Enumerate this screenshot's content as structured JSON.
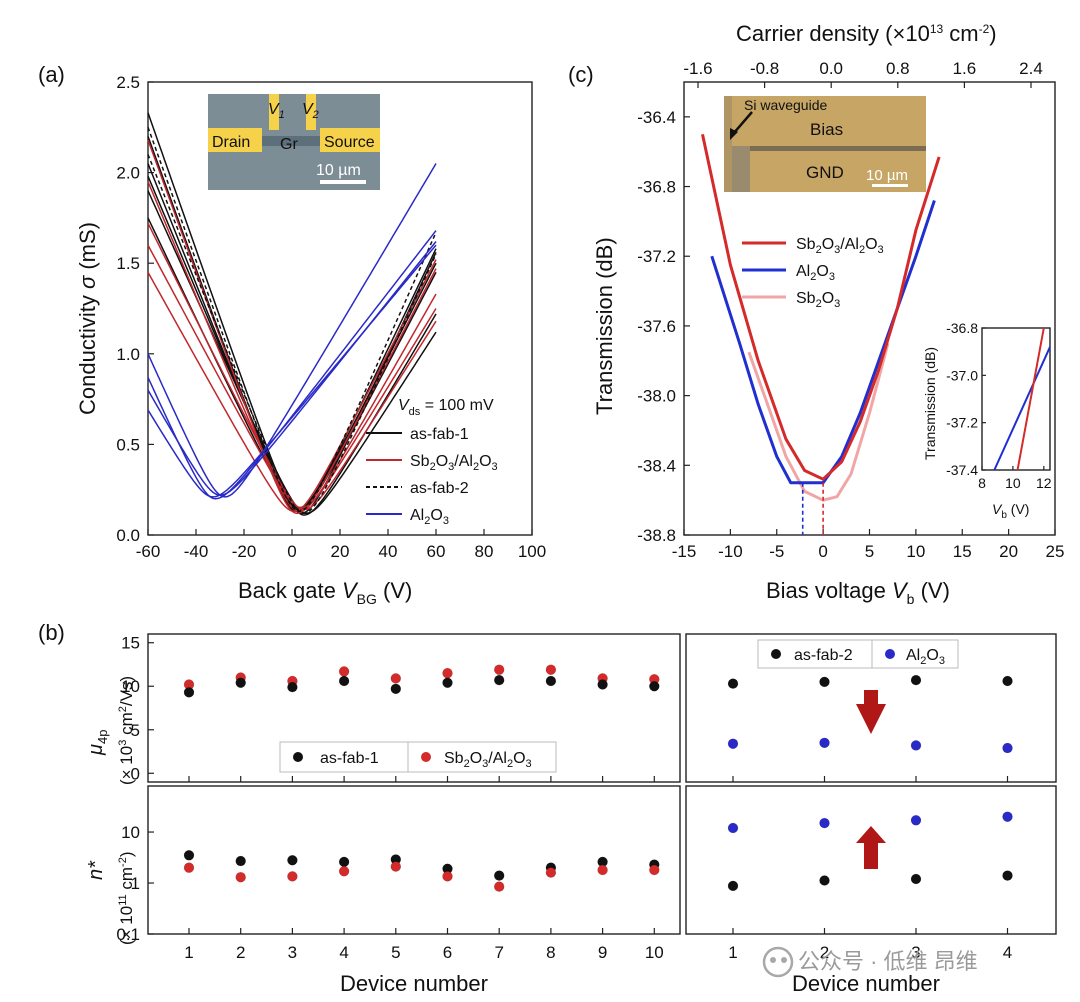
{
  "chart_data": [
    {
      "panel": "(a)",
      "type": "line",
      "xlabel": "Back gate V_BG (V)",
      "ylabel": "Conductivity σ (mS)",
      "xlim": [
        -60,
        100
      ],
      "ylim": [
        0,
        2.5
      ],
      "xticks": [
        "-60",
        "-40",
        "-20",
        "0",
        "20",
        "40",
        "60",
        "80",
        "100"
      ],
      "yticks": [
        "0.0",
        "0.5",
        "1.0",
        "1.5",
        "2.0",
        "2.5"
      ],
      "inset": {
        "labels": [
          "V1",
          "V2",
          "Drain",
          "Gr",
          "Source"
        ],
        "scale": "10 µm"
      },
      "legend_title": "V_ds = 100 mV",
      "legend": [
        "as-fab-1",
        "Sb2O3/Al2O3",
        "as-fab-2",
        "Al2O3"
      ],
      "colors": {
        "as_fab_1": "#111111",
        "sb2o3_al2o3": "#c0282d",
        "as_fab_2": "#111111",
        "al2o3": "#2a2ac8"
      },
      "series": [
        {
          "group": "as-fab-1",
          "style": "solid",
          "curves": [
            {
              "vd": 4,
              "left": 2.33,
              "right": 1.56,
              "min": 0.12
            },
            {
              "vd": 3,
              "left": 2.05,
              "right": 1.45,
              "min": 0.14
            },
            {
              "vd": 5,
              "left": 1.98,
              "right": 1.22,
              "min": 0.11
            },
            {
              "vd": 2,
              "left": 2.2,
              "right": 1.5,
              "min": 0.13
            },
            {
              "vd": 6,
              "left": 1.9,
              "right": 1.12,
              "min": 0.12
            },
            {
              "vd": 3,
              "left": 1.75,
              "right": 1.58,
              "min": 0.15
            }
          ]
        },
        {
          "group": "Sb2O3/Al2O3",
          "style": "solid",
          "curves": [
            {
              "vd": 2,
              "left": 2.18,
              "right": 1.47,
              "min": 0.12
            },
            {
              "vd": 3,
              "left": 1.95,
              "right": 1.33,
              "min": 0.13
            },
            {
              "vd": 4,
              "left": 1.6,
              "right": 1.25,
              "min": 0.15
            },
            {
              "vd": 1,
              "left": 1.45,
              "right": 1.52,
              "min": 0.13
            },
            {
              "vd": 5,
              "left": 1.72,
              "right": 1.18,
              "min": 0.14
            }
          ]
        },
        {
          "group": "as-fab-2",
          "style": "dashed",
          "curves": [
            {
              "vd": 3,
              "left": 2.25,
              "right": 1.67,
              "min": 0.13
            },
            {
              "vd": 5,
              "left": 2.1,
              "right": 1.55,
              "min": 0.12
            }
          ]
        },
        {
          "group": "Al2O3",
          "style": "solid",
          "curves": [
            {
              "vd": -28,
              "left": 1.0,
              "right": 2.05,
              "min": 0.21
            },
            {
              "vd": -32,
              "left": 0.87,
              "right": 1.68,
              "min": 0.2
            },
            {
              "vd": -30,
              "left": 0.8,
              "right": 1.62,
              "min": 0.22
            },
            {
              "vd": -33,
              "left": 0.69,
              "right": 1.6,
              "min": 0.21
            }
          ]
        }
      ]
    },
    {
      "panel": "(c)",
      "type": "line",
      "xlabel": "Bias voltage V_b (V)",
      "ylabel": "Transmission (dB)",
      "top_xlabel": "Carrier density (×10^13 cm^-2)",
      "xlim": [
        -15,
        25
      ],
      "ylim": [
        -38.8,
        -36.2
      ],
      "xticks": [
        "-15",
        "-10",
        "-5",
        "0",
        "5",
        "10",
        "15",
        "20",
        "25"
      ],
      "yticks": [
        "-36.4",
        "-36.8",
        "-37.2",
        "-37.6",
        "-38.0",
        "-38.4",
        "-38.8"
      ],
      "top_ticks": [
        "-1.6",
        "-0.8",
        "0.0",
        "0.8",
        "1.6",
        "2.4"
      ],
      "inset": {
        "labels": [
          "Si waveguide",
          "Bias",
          "GND"
        ],
        "scale": "10 µm"
      },
      "legend": [
        "Sb2O3/Al2O3",
        "Al2O3",
        "Sb2O3"
      ],
      "colors": {
        "sb2o3_al2o3": "#d42a2a",
        "al2o3": "#1f2fd0",
        "sb2o3": "#f2a5a5"
      },
      "series": [
        {
          "name": "Sb2O3/Al2O3",
          "x": [
            -13,
            -10,
            -7,
            -4,
            -2,
            0,
            2,
            4,
            6,
            8,
            10,
            12.5
          ],
          "y": [
            -36.5,
            -37.25,
            -37.8,
            -38.25,
            -38.43,
            -38.48,
            -38.38,
            -38.15,
            -37.85,
            -37.5,
            -37.05,
            -36.63
          ]
        },
        {
          "name": "Al2O3",
          "x": [
            -12,
            -9,
            -7,
            -5,
            -3.5,
            -2,
            0,
            2,
            4,
            6,
            8,
            10,
            12
          ],
          "y": [
            -37.2,
            -37.7,
            -38.05,
            -38.35,
            -38.5,
            -38.5,
            -38.5,
            -38.35,
            -38.1,
            -37.8,
            -37.5,
            -37.2,
            -36.88
          ]
        },
        {
          "name": "Sb2O3",
          "x": [
            -8,
            -6,
            -4,
            -2,
            0,
            1.5,
            3,
            5,
            7
          ],
          "y": [
            -37.75,
            -38.05,
            -38.35,
            -38.55,
            -38.6,
            -38.58,
            -38.45,
            -38.1,
            -37.7
          ]
        }
      ],
      "vlines": [
        {
          "x": -2.2,
          "color": "#1f2fd0"
        },
        {
          "x": 0,
          "color": "#d42a2a"
        }
      ],
      "mini_inset": {
        "ylabel": "Transmission (dB)",
        "xlabel": "V_b (V)",
        "xticks": [
          "8",
          "10",
          "12"
        ],
        "yticks": [
          "-36.8",
          "-37.0",
          "-37.2",
          "-37.4"
        ],
        "xlim": [
          8,
          12.4
        ],
        "ylim": [
          -37.4,
          -36.8
        ],
        "series": [
          {
            "name": "Al2O3",
            "x": [
              8.8,
              12.4
            ],
            "y": [
              -37.4,
              -36.88
            ]
          },
          {
            "name": "Sb2O3/Al2O3",
            "x": [
              10.3,
              12.0
            ],
            "y": [
              -37.4,
              -36.8
            ]
          }
        ]
      }
    },
    {
      "panel": "(b)",
      "type": "scatter",
      "xlabel": "Device number",
      "top_ylabel": "μ4p (× 10^3 cm^2/Vs)",
      "bottom_ylabel": "n* (× 10^11 cm^-2)",
      "mu_yticks": [
        "0",
        "5",
        "10",
        "15"
      ],
      "mu_ylim": [
        -1,
        16
      ],
      "n_yticks": [
        "0.1",
        "1",
        "10"
      ],
      "n_ylim": [
        0.1,
        80
      ],
      "left": {
        "devices": [
          "1",
          "2",
          "3",
          "4",
          "5",
          "6",
          "7",
          "8",
          "9",
          "10"
        ],
        "legend": [
          "as-fab-1",
          "Sb2O3/Al2O3"
        ],
        "mu_asfab1": [
          9.3,
          10.4,
          9.9,
          10.6,
          9.7,
          10.4,
          10.7,
          10.6,
          10.2,
          10.0
        ],
        "mu_treated": [
          10.2,
          11.0,
          10.6,
          11.7,
          10.9,
          11.5,
          11.9,
          11.9,
          10.9,
          10.8
        ],
        "n_asfab1": [
          3.5,
          2.7,
          2.8,
          2.6,
          2.9,
          1.9,
          1.4,
          2.0,
          2.6,
          2.3
        ],
        "n_treated": [
          2.0,
          1.3,
          1.35,
          1.7,
          2.1,
          1.35,
          0.85,
          1.6,
          1.8,
          1.8
        ]
      },
      "right": {
        "devices": [
          "1",
          "2",
          "3",
          "4"
        ],
        "legend": [
          "as-fab-2",
          "Al2O3"
        ],
        "mu_asfab2": [
          10.3,
          10.5,
          10.7,
          10.6
        ],
        "mu_al2o3": [
          3.4,
          3.5,
          3.2,
          2.9
        ],
        "n_asfab2": [
          0.88,
          1.12,
          1.2,
          1.4
        ],
        "n_al2o3": [
          12,
          15,
          17,
          20
        ]
      }
    }
  ],
  "watermark": "公众号 · 低维 昂维"
}
